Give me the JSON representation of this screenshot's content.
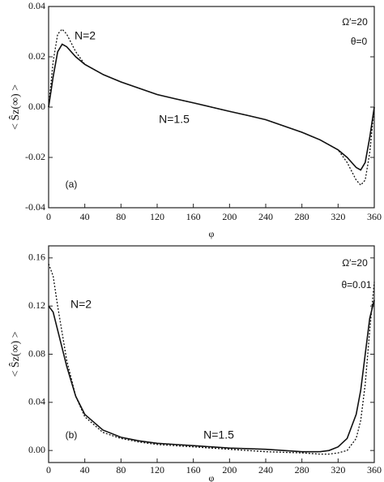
{
  "chart_data": [
    {
      "type": "line",
      "x_label": "φ",
      "y_label": "< Ŝz(∞) >",
      "x": [
        0,
        5,
        10,
        15,
        20,
        30,
        40,
        60,
        80,
        100,
        120,
        140,
        160,
        180,
        200,
        220,
        240,
        260,
        280,
        300,
        320,
        330,
        340,
        345,
        350,
        355,
        360
      ],
      "series": [
        {
          "name": "N=2",
          "color": "#111",
          "dash": "dotted",
          "values": [
            0,
            0.018,
            0.029,
            0.031,
            0.029,
            0.022,
            0.017,
            0.013,
            0.01,
            0.0075,
            0.005,
            0.0033,
            0.0017,
            0,
            -0.0017,
            -0.0033,
            -0.005,
            -0.0075,
            -0.01,
            -0.013,
            -0.017,
            -0.022,
            -0.029,
            -0.031,
            -0.029,
            -0.018,
            0
          ]
        },
        {
          "name": "N=1.5",
          "color": "#111",
          "dash": "solid",
          "values": [
            0,
            0.012,
            0.022,
            0.025,
            0.024,
            0.02,
            0.017,
            0.013,
            0.01,
            0.0075,
            0.005,
            0.0033,
            0.0017,
            0,
            -0.0017,
            -0.0033,
            -0.005,
            -0.0075,
            -0.01,
            -0.013,
            -0.017,
            -0.02,
            -0.024,
            -0.025,
            -0.022,
            -0.012,
            0
          ]
        }
      ],
      "annotations": [
        "Ω′=20",
        "θ=0",
        "(a)"
      ],
      "xlim": [
        0,
        360
      ],
      "xticks": [
        0,
        40,
        80,
        120,
        160,
        200,
        240,
        280,
        320,
        360
      ],
      "ylim": [
        -0.04,
        0.04
      ],
      "yticks": [
        0.04,
        0.02,
        {
          "value": 0,
          "label": "0.00"
        },
        -0.02,
        -0.04
      ]
    },
    {
      "type": "line",
      "x_label": "φ",
      "y_label": "< Ŝz(∞) >",
      "x": [
        0,
        5,
        10,
        20,
        30,
        40,
        60,
        80,
        100,
        120,
        140,
        160,
        180,
        200,
        220,
        240,
        260,
        280,
        300,
        310,
        320,
        330,
        340,
        345,
        350,
        355,
        360
      ],
      "series": [
        {
          "name": "N=2",
          "color": "#111",
          "dash": "dotted",
          "values": [
            0.155,
            0.145,
            0.12,
            0.075,
            0.045,
            0.028,
            0.015,
            0.01,
            0.007,
            0.005,
            0.004,
            0.003,
            0.002,
            0.001,
            0,
            -0.001,
            -0.0015,
            -0.002,
            -0.003,
            -0.003,
            -0.002,
            0,
            0.01,
            0.025,
            0.055,
            0.1,
            0.14
          ]
        },
        {
          "name": "N=1.5",
          "color": "#111",
          "dash": "solid",
          "values": [
            0.12,
            0.115,
            0.1,
            0.07,
            0.045,
            0.03,
            0.017,
            0.011,
            0.008,
            0.006,
            0.005,
            0.004,
            0.003,
            0.002,
            0.0015,
            0.001,
            0,
            -0.001,
            -0.001,
            0,
            0.003,
            0.01,
            0.03,
            0.05,
            0.08,
            0.11,
            0.125
          ]
        }
      ],
      "annotations": [
        "Ω′=20",
        "θ=0.01",
        "(b)"
      ],
      "xlim": [
        0,
        360
      ],
      "xticks": [
        0,
        40,
        80,
        120,
        160,
        200,
        240,
        280,
        320,
        360
      ],
      "ylim": [
        -0.01,
        0.17
      ],
      "yticks": [
        0.16,
        0.12,
        0.08,
        0.04,
        {
          "value": 0,
          "label": "0.00"
        }
      ]
    }
  ]
}
